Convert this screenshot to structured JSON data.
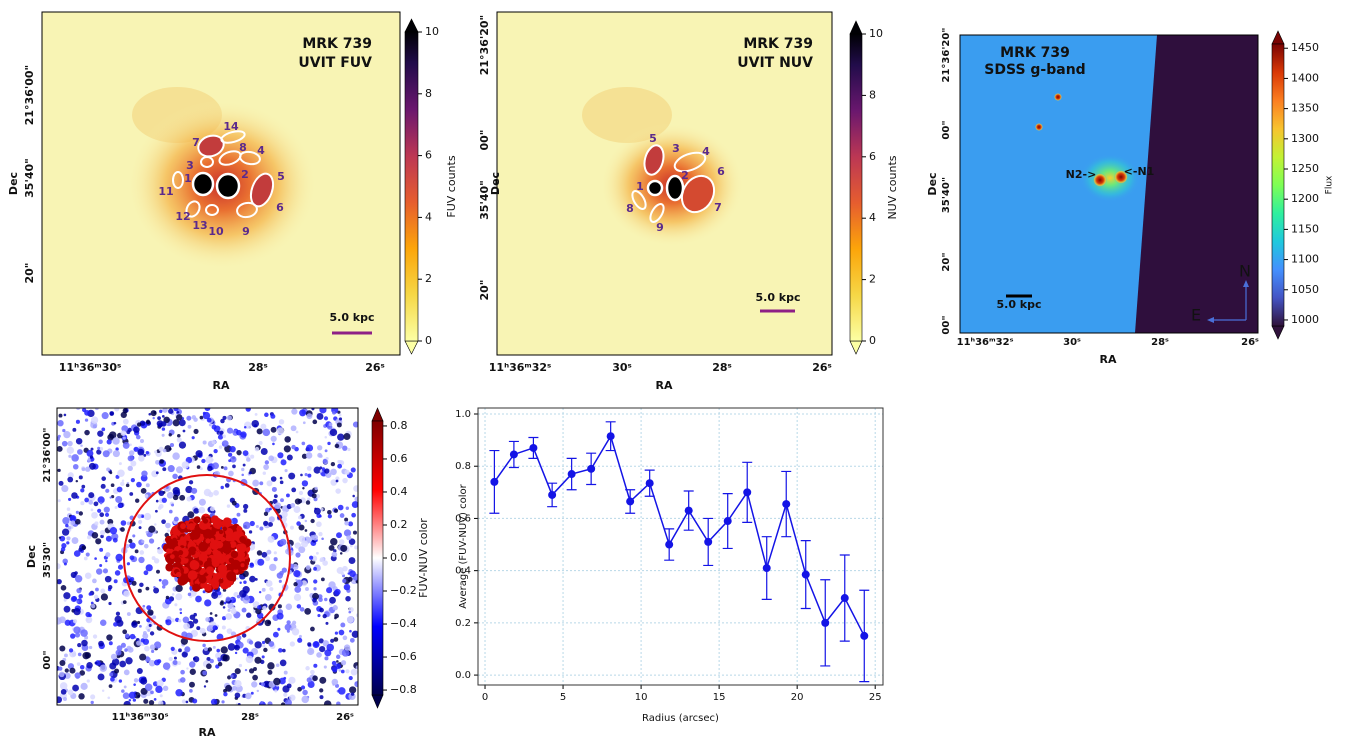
{
  "chart_data": [
    {
      "type": "image",
      "title": "MRK 739",
      "subtitle": "UVIT FUV",
      "title_color": "#8e1f86",
      "x_label": "RA",
      "y_label": "Dec",
      "x_tick_labels": [
        "11ʰ36ᵐ30ˢ",
        "28ˢ",
        "26ˢ"
      ],
      "y_tick_labels": [
        "21°36'00\"",
        "35'40\"",
        "20\""
      ],
      "region_labels": [
        "1",
        "2",
        "3",
        "4",
        "5",
        "6",
        "7",
        "8",
        "9",
        "10",
        "11",
        "12",
        "13",
        "14"
      ],
      "scale_bar": "5.0 kpc",
      "colorbar": {
        "label": "FUV counts",
        "colormap": "inferno_r",
        "lim": [
          0,
          10
        ],
        "ticks": [
          0,
          2,
          4,
          6,
          8,
          10
        ]
      }
    },
    {
      "type": "image",
      "title": "MRK 739",
      "subtitle": "UVIT NUV",
      "title_color": "#8e1f86",
      "x_label": "RA",
      "y_label": "Dec",
      "x_tick_labels": [
        "11ʰ36ᵐ32ˢ",
        "30ˢ",
        "28ˢ",
        "26ˢ"
      ],
      "y_tick_labels": [
        "21°36'20\"",
        "00\"",
        "35'40\"",
        "20\""
      ],
      "region_labels": [
        "1",
        "2",
        "3",
        "4",
        "5",
        "6",
        "7",
        "8",
        "9"
      ],
      "scale_bar": "5.0 kpc",
      "colorbar": {
        "label": "NUV counts",
        "colormap": "inferno_r",
        "lim": [
          0,
          10
        ],
        "ticks": [
          0,
          2,
          4,
          6,
          8,
          10
        ]
      }
    },
    {
      "type": "image",
      "title": "MRK 739",
      "subtitle": "SDSS g-band",
      "title_color": "#000000",
      "x_label": "RA",
      "y_label": "Dec",
      "x_tick_labels": [
        "11ʰ36ᵐ32ˢ",
        "30ˢ",
        "28ˢ",
        "26ˢ"
      ],
      "y_tick_labels": [
        "21°36'20\"",
        "00\"",
        "35'40\"",
        "20\"",
        "00\""
      ],
      "source_labels": [
        "N2->",
        "<-N1"
      ],
      "compass": [
        "N",
        "E"
      ],
      "scale_bar": "5.0 kpc",
      "colorbar": {
        "label": "Flux",
        "colormap": "turbo",
        "lim": [
          990,
          1457
        ],
        "ticks": [
          1000,
          1050,
          1100,
          1150,
          1200,
          1250,
          1300,
          1350,
          1400,
          1450
        ]
      }
    },
    {
      "type": "image",
      "x_label": "RA",
      "y_label": "Dec",
      "x_tick_labels": [
        "11ʰ36ᵐ30ˢ",
        "28ˢ",
        "26ˢ"
      ],
      "y_tick_labels": [
        "21°36'00\"",
        "35'30\"",
        "00\""
      ],
      "colorbar": {
        "label": "FUV-NUV color",
        "colormap": "seismic",
        "lim": [
          -0.83,
          0.83
        ],
        "ticks": [
          {
            "value": -0.8,
            "label": "−0.8"
          },
          {
            "value": -0.6,
            "label": "−0.6"
          },
          {
            "value": -0.4,
            "label": "−0.4"
          },
          {
            "value": -0.2,
            "label": "−0.2"
          },
          {
            "value": 0,
            "label": "0.0"
          },
          0.2,
          0.4,
          0.6,
          0.8
        ]
      }
    },
    {
      "type": "line",
      "x_label": "Radius (arcsec)",
      "y_label": "Average (FUV-NUV) color",
      "color": "#1414e6",
      "grid": true,
      "x": [
        0.6,
        1.85,
        3.1,
        4.3,
        5.55,
        6.8,
        8.05,
        9.3,
        10.55,
        11.8,
        13.05,
        14.3,
        15.55,
        16.8,
        18.05,
        19.3,
        20.55,
        21.8,
        23.05,
        24.3
      ],
      "values": [
        0.74,
        0.845,
        0.87,
        0.69,
        0.77,
        0.79,
        0.915,
        0.665,
        0.735,
        0.5,
        0.63,
        0.51,
        0.59,
        0.7,
        0.41,
        0.655,
        0.385,
        0.2,
        0.295,
        0.15
      ],
      "errors": [
        0.12,
        0.05,
        0.04,
        0.045,
        0.06,
        0.06,
        0.055,
        0.045,
        0.05,
        0.06,
        0.075,
        0.09,
        0.105,
        0.115,
        0.12,
        0.125,
        0.13,
        0.165,
        0.165,
        0.175
      ],
      "xlim": [
        -0.45,
        25.5
      ],
      "ylim": [
        -0.038,
        1.023
      ],
      "xticks": [
        0,
        5,
        10,
        15,
        20,
        25
      ],
      "yticks": [
        {
          "value": 0,
          "label": "0.0"
        },
        0.2,
        0.4,
        0.6,
        0.8,
        {
          "value": 1,
          "label": "1.0"
        }
      ]
    }
  ]
}
